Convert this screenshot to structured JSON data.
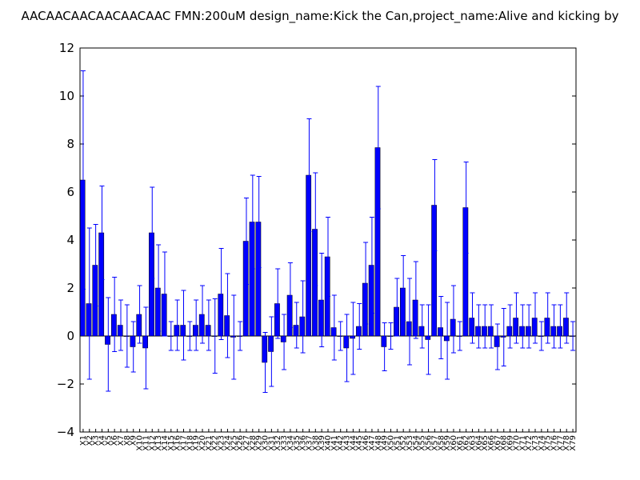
{
  "chart_data": {
    "type": "bar",
    "title": "AACAACAACAACAACAAC  FMN:200uM  design_name:Kick the Can,project_name:Alive and kicking by",
    "xlabel": "",
    "ylabel": "",
    "ylim": [
      -4,
      12
    ],
    "yticks": [
      -4,
      -2,
      0,
      2,
      4,
      6,
      8,
      10,
      12
    ],
    "grid": false,
    "bar_color": "#0000ff",
    "error_color": "#0000ff",
    "categories": [
      "X1",
      "X2",
      "X3",
      "X4",
      "X5",
      "X6",
      "X7",
      "X8",
      "X9",
      "X10",
      "X11",
      "X12",
      "X13",
      "X14",
      "X15",
      "X16",
      "X17",
      "X18",
      "X19",
      "X20",
      "X21",
      "X22",
      "X23",
      "X24",
      "X25",
      "X26",
      "X27",
      "X28",
      "X29",
      "X30",
      "X31",
      "X32",
      "X33",
      "X34",
      "X35",
      "X36",
      "X37",
      "X38",
      "X39",
      "X40",
      "X41",
      "X42",
      "X43",
      "X44",
      "X45",
      "X46",
      "X47",
      "X48",
      "X49",
      "X50",
      "X51",
      "X52",
      "X53",
      "X54",
      "X55",
      "X56",
      "X57",
      "X58",
      "X59",
      "X60",
      "X61",
      "X62",
      "X63",
      "X64",
      "X65",
      "X66",
      "X67",
      "X68",
      "X69",
      "X70",
      "X71",
      "X72",
      "X73",
      "X74",
      "X75",
      "X76",
      "X77",
      "X78",
      "X79"
    ],
    "values": [
      6.5,
      1.35,
      2.95,
      4.3,
      -0.35,
      0.9,
      0.45,
      0.0,
      -0.45,
      0.9,
      -0.5,
      4.3,
      2.0,
      1.75,
      0.0,
      0.45,
      0.45,
      0.0,
      0.45,
      0.9,
      0.45,
      0.0,
      1.75,
      0.85,
      -0.05,
      0.0,
      3.95,
      4.75,
      4.75,
      -1.1,
      -0.65,
      1.35,
      -0.25,
      1.7,
      0.45,
      0.8,
      6.7,
      4.45,
      1.5,
      3.3,
      0.35,
      0.0,
      -0.5,
      -0.1,
      0.4,
      2.2,
      2.95,
      7.85,
      -0.45,
      0.0,
      1.2,
      2.0,
      0.6,
      1.5,
      0.4,
      -0.15,
      5.45,
      0.35,
      -0.2,
      0.7,
      0.0,
      5.35,
      0.75,
      0.4,
      0.4,
      0.4,
      -0.45,
      -0.05,
      0.4,
      0.75,
      0.4,
      0.4,
      0.75,
      0.0,
      0.75,
      0.4,
      0.4,
      0.75,
      0.0
    ],
    "errors": [
      4.55,
      3.15,
      1.7,
      1.95,
      1.95,
      1.55,
      1.05,
      1.3,
      1.05,
      1.2,
      1.7,
      1.9,
      1.8,
      1.75,
      0.6,
      1.05,
      1.45,
      0.6,
      1.05,
      1.2,
      1.05,
      1.55,
      1.9,
      1.75,
      1.75,
      0.6,
      1.8,
      1.95,
      1.9,
      1.25,
      1.45,
      1.45,
      1.15,
      1.35,
      0.95,
      1.5,
      2.35,
      2.35,
      1.95,
      1.65,
      1.35,
      0.6,
      1.4,
      1.5,
      0.95,
      1.7,
      2.0,
      2.55,
      1.0,
      0.55,
      1.2,
      1.35,
      1.8,
      1.6,
      0.9,
      1.45,
      1.9,
      1.3,
      1.6,
      1.4,
      0.6,
      1.9,
      1.05,
      0.9,
      0.9,
      0.9,
      0.95,
      1.2,
      0.9,
      1.05,
      0.9,
      0.9,
      1.05,
      0.6,
      1.05,
      0.9,
      0.9,
      1.05,
      0.6
    ]
  }
}
